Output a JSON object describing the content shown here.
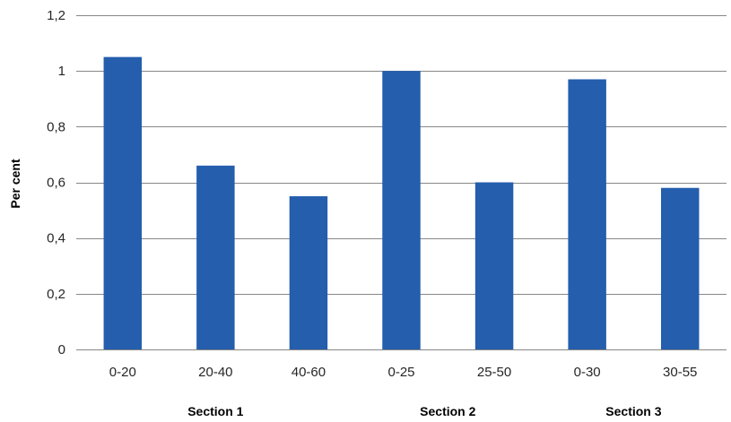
{
  "chart_data": {
    "type": "bar",
    "categories": [
      "0-20",
      "20-40",
      "40-60",
      "0-25",
      "25-50",
      "0-30",
      "30-55"
    ],
    "values": [
      1.05,
      0.66,
      0.55,
      1.0,
      0.6,
      0.97,
      0.58
    ],
    "groups": [
      {
        "label": "Section 1",
        "categories": [
          "0-20",
          "20-40",
          "40-60"
        ]
      },
      {
        "label": "Section  2",
        "categories": [
          "0-25",
          "25-50"
        ]
      },
      {
        "label": "Section 3",
        "categories": [
          "0-30",
          "30-55"
        ]
      }
    ],
    "title": "",
    "xlabel": "",
    "ylabel": "Per cent",
    "ylim": [
      0,
      1.2
    ],
    "yticks": [
      0,
      0.2,
      0.4,
      0.6,
      0.8,
      1,
      1.2
    ],
    "ytick_labels": [
      "0",
      "0,2",
      "0,4",
      "0,6",
      "0,8",
      "1",
      "1,2"
    ],
    "grid": true,
    "legend": "none",
    "bar_color": "#245EAD",
    "grid_color": "#878787"
  }
}
